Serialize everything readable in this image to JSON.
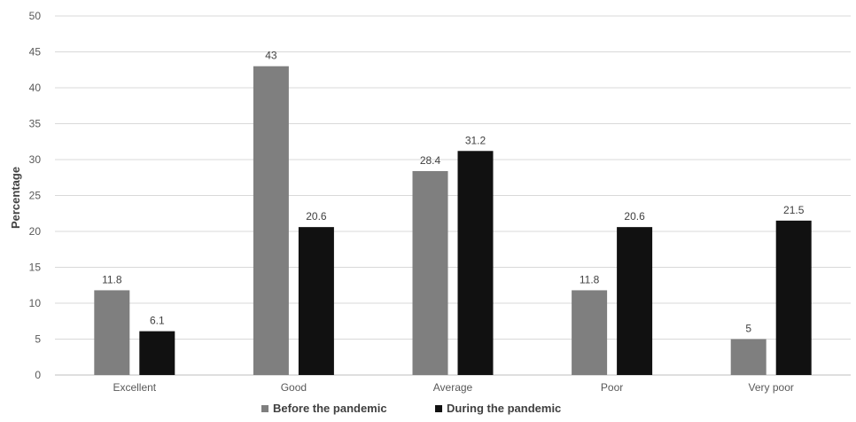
{
  "chart_data": {
    "type": "bar",
    "title": "",
    "xlabel": "",
    "ylabel": "Percentage",
    "ylim": [
      0,
      50
    ],
    "yticks": [
      0,
      5,
      10,
      15,
      20,
      25,
      30,
      35,
      40,
      45,
      50
    ],
    "grid": true,
    "legend_position": "bottom",
    "categories": [
      "Excellent",
      "Good",
      "Average",
      "Poor",
      "Very poor"
    ],
    "series": [
      {
        "name": "Before the pandemic",
        "color": "#7f7f7f",
        "values": [
          11.8,
          43,
          28.4,
          11.8,
          5
        ]
      },
      {
        "name": "During the pandemic",
        "color": "#111111",
        "values": [
          6.1,
          20.6,
          31.2,
          20.6,
          21.5
        ]
      }
    ]
  }
}
